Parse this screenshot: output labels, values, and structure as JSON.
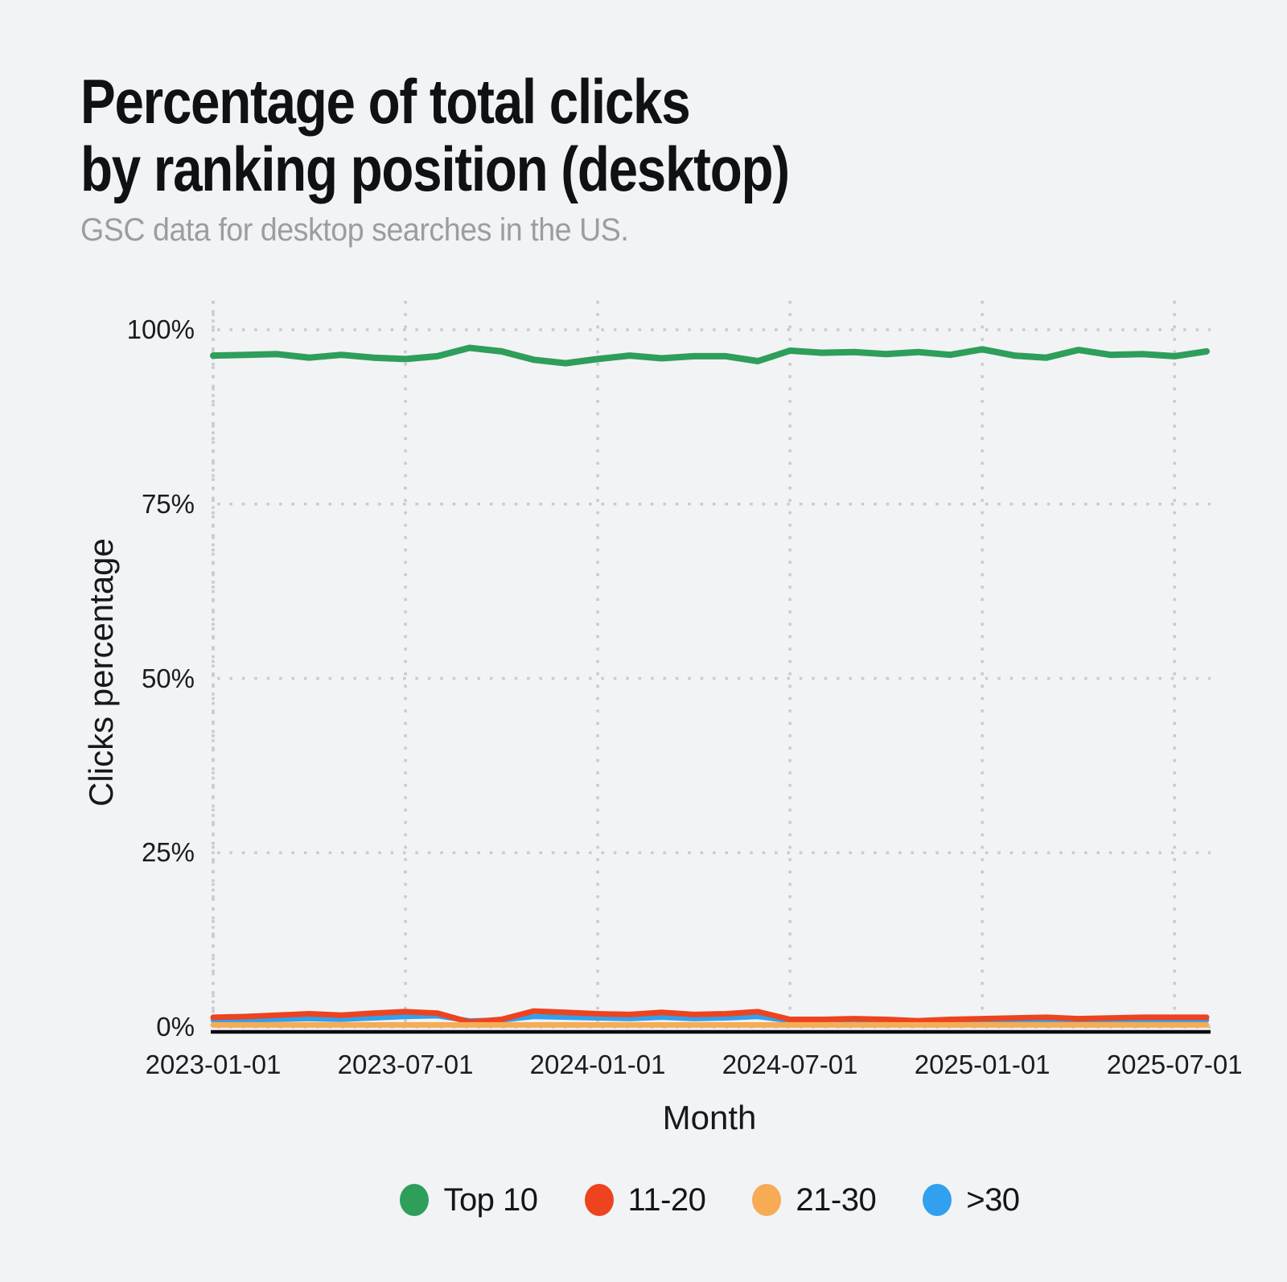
{
  "header": {
    "title_line1": "Percentage of total clicks",
    "title_line2": "by ranking position (desktop)",
    "subtitle": "GSC data for desktop searches in the US."
  },
  "colors": {
    "background": "#f2f3f5",
    "grid": "#c9cbce",
    "axis_line": "#0b0b0b",
    "title_text": "#101114",
    "subtitle_text": "#9b9da1",
    "tick_text": "#1b1c1e"
  },
  "chart_data": {
    "type": "line",
    "title": "Percentage of total clicks by ranking position (desktop)",
    "subtitle": "GSC data for desktop searches in the US.",
    "xlabel": "Month",
    "ylabel": "Clicks percentage",
    "ylim": [
      0,
      100
    ],
    "grid": "dotted",
    "legend_position": "bottom",
    "x": [
      "2023-01-01",
      "2023-02-01",
      "2023-03-01",
      "2023-04-01",
      "2023-05-01",
      "2023-06-01",
      "2023-07-01",
      "2023-08-01",
      "2023-09-01",
      "2023-10-01",
      "2023-11-01",
      "2023-12-01",
      "2024-01-01",
      "2024-02-01",
      "2024-03-01",
      "2024-04-01",
      "2024-05-01",
      "2024-06-01",
      "2024-07-01",
      "2024-08-01",
      "2024-09-01",
      "2024-10-01",
      "2024-11-01",
      "2024-12-01",
      "2025-01-01",
      "2025-02-01",
      "2025-03-01",
      "2025-04-01",
      "2025-05-01",
      "2025-06-01",
      "2025-07-01",
      "2025-08-01"
    ],
    "x_ticks": [
      "2023-01-01",
      "2023-07-01",
      "2024-01-01",
      "2024-07-01",
      "2025-01-01",
      "2025-07-01"
    ],
    "y_ticks": [
      {
        "label": "100%",
        "value": 100
      },
      {
        "label": "75%",
        "value": 75
      },
      {
        "label": "50%",
        "value": 50
      },
      {
        "label": "25%",
        "value": 25
      },
      {
        "label": "0%",
        "value": 0
      }
    ],
    "series": [
      {
        "name": "Top 10",
        "color": "#2e9e5b",
        "width": 8,
        "values": [
          96.3,
          96.4,
          96.5,
          96.0,
          96.4,
          96.0,
          95.8,
          96.2,
          97.4,
          96.9,
          95.7,
          95.2,
          95.8,
          96.3,
          95.9,
          96.2,
          96.2,
          95.5,
          97.0,
          96.7,
          96.8,
          96.5,
          96.8,
          96.4,
          97.2,
          96.3,
          96.0,
          97.1,
          96.4,
          96.5,
          96.2,
          96.9
        ]
      },
      {
        "name": "11-20",
        "color": "#ed431f",
        "width": 7,
        "values": [
          1.4,
          1.5,
          1.7,
          1.9,
          1.7,
          2.0,
          2.2,
          2.0,
          0.7,
          1.1,
          2.3,
          2.1,
          1.9,
          1.8,
          2.1,
          1.8,
          1.9,
          2.2,
          1.1,
          1.1,
          1.2,
          1.1,
          0.9,
          1.1,
          1.2,
          1.3,
          1.4,
          1.2,
          1.3,
          1.4,
          1.4,
          1.4
        ]
      },
      {
        "name": "21-30",
        "color": "#f7ab55",
        "width": 7,
        "values": [
          0.3,
          0.3,
          0.3,
          0.3,
          0.3,
          0.3,
          0.3,
          0.3,
          0.3,
          0.3,
          0.3,
          0.3,
          0.3,
          0.3,
          0.3,
          0.3,
          0.3,
          0.3,
          0.3,
          0.3,
          0.3,
          0.3,
          0.3,
          0.3,
          0.3,
          0.3,
          0.3,
          0.3,
          0.3,
          0.3,
          0.3,
          0.3
        ]
      },
      {
        "name": ">30",
        "color": "#31a0ee",
        "width": 6.5,
        "values": [
          1.0,
          1.0,
          1.1,
          1.2,
          1.1,
          1.3,
          1.5,
          1.6,
          0.9,
          1.0,
          1.5,
          1.4,
          1.3,
          1.2,
          1.4,
          1.2,
          1.3,
          1.5,
          0.9,
          0.8,
          0.9,
          0.8,
          0.5,
          0.7,
          0.8,
          0.9,
          1.0,
          0.8,
          0.7,
          0.9,
          1.0,
          1.0
        ]
      }
    ]
  }
}
